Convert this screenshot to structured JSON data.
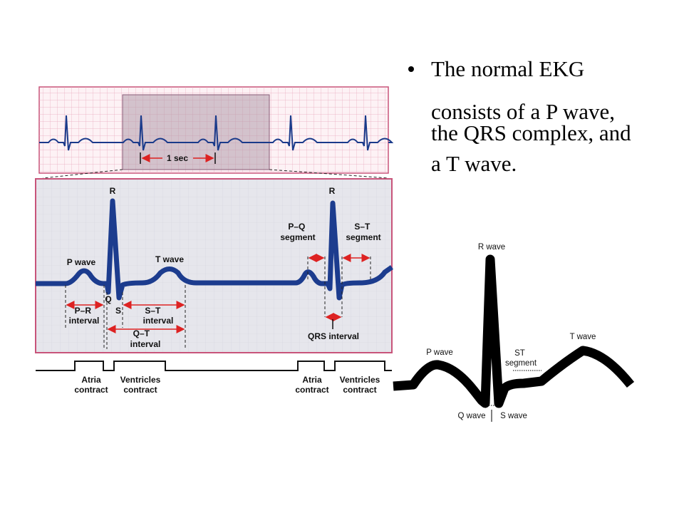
{
  "bullet": {
    "lines": [
      "The normal EKG",
      "consists of a P wave,",
      "the QRS complex, and",
      "a T wave."
    ]
  },
  "strip": {
    "scale": "1 sec"
  },
  "detail": {
    "r1": "R",
    "r2": "R",
    "p_wave": "P wave",
    "t_wave": "T wave",
    "q": "Q",
    "s": "S",
    "pr_interval": [
      "P–R",
      "interval"
    ],
    "st_interval": [
      "S–T",
      "interval"
    ],
    "qt_interval": [
      "Q–T",
      "interval"
    ],
    "pq_segment": [
      "P–Q",
      "segment"
    ],
    "st_segment": [
      "S–T",
      "segment"
    ],
    "qrs_interval": "QRS interval"
  },
  "timeline": {
    "events": [
      [
        "Atria",
        "contract"
      ],
      [
        "Ventricles",
        "contract"
      ],
      [
        "Atria",
        "contract"
      ],
      [
        "Ventricles",
        "contract"
      ]
    ]
  },
  "right": {
    "r_wave": "R wave",
    "p_wave": "P wave",
    "st_segment": [
      "ST",
      "segment"
    ],
    "t_wave": "T wave",
    "q_wave": "Q wave",
    "s_wave": "S wave"
  }
}
